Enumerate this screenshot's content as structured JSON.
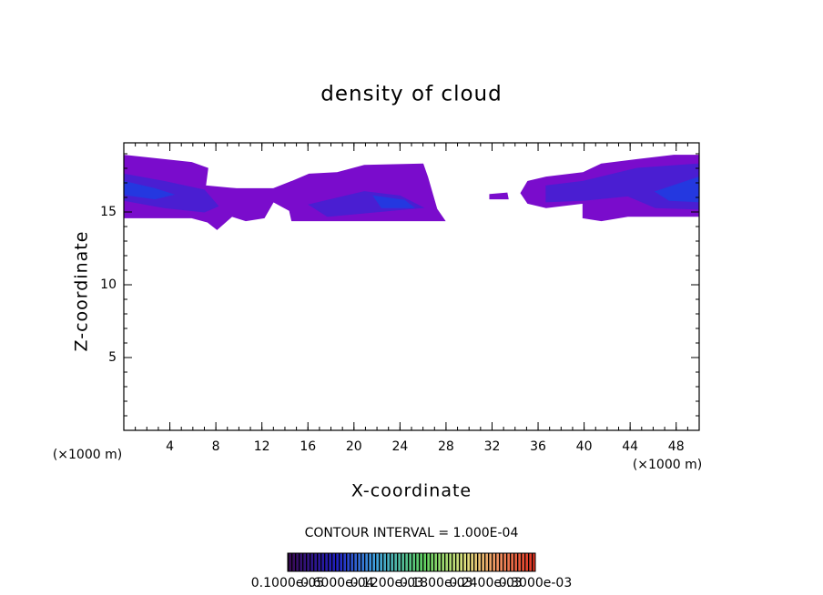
{
  "chart_data": {
    "type": "contour",
    "title": "density of cloud",
    "xlabel": "X-coordinate",
    "ylabel": "Z-coordinate",
    "xunit": "(×1000 m)",
    "yunit": "(×1000 m)",
    "xlim": [
      0,
      50
    ],
    "ylim": [
      0,
      19.75
    ],
    "xticks": [
      4,
      8,
      12,
      16,
      20,
      24,
      28,
      32,
      36,
      40,
      44,
      48
    ],
    "yticks": [
      5,
      10,
      15
    ],
    "xminor": 1,
    "yminor": 1,
    "regions": [
      {
        "color": "#7a0ccc",
        "x": [
          0,
          5.9,
          7.3,
          7.1,
          9.8,
          13.0,
          14.6,
          16.1,
          18.5,
          20.9,
          26.0,
          26.4,
          27.2,
          27.9,
          26.4,
          14.6,
          14.4,
          13.0,
          12.2,
          10.6,
          9.4,
          8.1,
          7.3,
          5.9,
          0
        ],
        "z": [
          18.9,
          18.4,
          18.0,
          16.8,
          16.6,
          16.6,
          17.1,
          17.6,
          17.7,
          18.2,
          18.3,
          17.4,
          15.2,
          14.4,
          14.4,
          14.4,
          15.1,
          15.7,
          14.6,
          14.4,
          14.7,
          13.8,
          14.3,
          14.6,
          14.6
        ]
      },
      {
        "color": "#7a0ccc",
        "x": [
          35.1,
          36.7,
          39.9,
          41.5,
          44.6,
          47.8,
          50,
          50,
          43.8,
          41.5,
          39.9,
          39.9,
          36.7,
          35.1,
          34.5
        ],
        "z": [
          17.1,
          17.4,
          17.7,
          18.3,
          18.6,
          18.9,
          18.9,
          14.7,
          14.7,
          14.4,
          14.6,
          15.6,
          15.3,
          15.6,
          16.3
        ]
      },
      {
        "color": "#7a0ccc",
        "x": [
          31.8,
          33.3,
          33.4,
          31.8
        ],
        "z": [
          16.2,
          16.3,
          15.9,
          15.9
        ]
      },
      {
        "color": "#4a1ed2",
        "x": [
          0,
          3.5,
          7.0,
          8.2,
          7.0,
          3.5,
          0
        ],
        "z": [
          17.6,
          17.1,
          16.5,
          15.4,
          15.0,
          15.3,
          15.8
        ]
      },
      {
        "color": "#4a1ed2",
        "x": [
          16.1,
          20.9,
          24.0,
          26.0,
          23.2,
          17.7
        ],
        "z": [
          15.5,
          16.4,
          16.1,
          15.3,
          15.1,
          14.7
        ]
      },
      {
        "color": "#4a1ed2",
        "x": [
          36.7,
          39.9,
          44.6,
          50,
          50,
          46.2,
          43.8,
          39.9,
          36.7
        ],
        "z": [
          16.8,
          17.1,
          18.0,
          18.3,
          15.2,
          15.3,
          16.1,
          15.8,
          15.7
        ]
      },
      {
        "color": "#2438e0",
        "x": [
          0,
          2.7,
          4.3,
          2.7,
          0
        ],
        "z": [
          17.1,
          16.6,
          16.2,
          15.9,
          16.2
        ]
      },
      {
        "color": "#2438e0",
        "x": [
          21.7,
          24.4,
          25.2,
          22.4
        ],
        "z": [
          16.1,
          15.8,
          15.3,
          15.3
        ]
      },
      {
        "color": "#2438e0",
        "x": [
          46.2,
          50,
          50,
          47.4
        ],
        "z": [
          16.4,
          17.4,
          15.7,
          15.8
        ]
      }
    ],
    "contour_interval": "CONTOUR INTERVAL = 1.000E-04",
    "colorbar_labels": [
      "0.1000e-05",
      "0.6000e-04",
      "0.1200e-03",
      "0.1800e-03",
      "0.2400e-03",
      "0.3000e-03"
    ]
  }
}
